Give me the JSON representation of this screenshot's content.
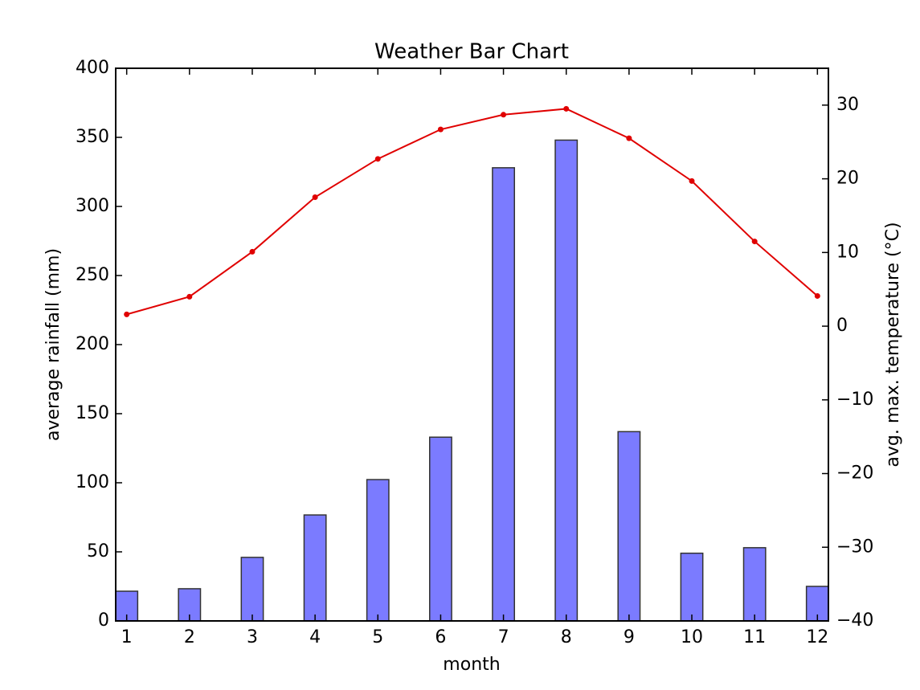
{
  "chart_data": {
    "type": "bar",
    "title": "Weather Bar Chart",
    "xlabel": "month",
    "ylabel": "average rainfall (mm)",
    "y2label": "avg. max. temperature (°C)",
    "x": [
      1,
      2,
      3,
      4,
      5,
      6,
      7,
      8,
      9,
      10,
      11,
      12
    ],
    "xlim": [
      0.825,
      12.175
    ],
    "xticks": [
      1,
      2,
      3,
      4,
      5,
      6,
      7,
      8,
      9,
      10,
      11,
      12
    ],
    "ylim": [
      0,
      400
    ],
    "yticks": [
      0,
      50,
      100,
      150,
      200,
      250,
      300,
      350,
      400
    ],
    "y2lim": [
      -40,
      35
    ],
    "y2ticks": [
      {
        "value": -40,
        "label": "−40"
      },
      {
        "value": -30,
        "label": "−30"
      },
      {
        "value": -20,
        "label": "−20"
      },
      {
        "value": -10,
        "label": "−10"
      },
      0,
      10,
      20,
      30
    ],
    "series": [
      {
        "type": "bar",
        "color": "#7b7bff",
        "values": [
          21.5,
          23.3,
          46,
          76.7,
          102.3,
          133,
          328,
          348,
          137,
          49,
          53,
          25
        ]
      },
      {
        "type": "line",
        "axis": "y2",
        "color": "#e00000",
        "values": [
          1.6,
          4.0,
          10.1,
          17.5,
          22.7,
          26.7,
          28.7,
          29.5,
          25.5,
          19.7,
          11.5,
          4.1
        ]
      }
    ]
  }
}
